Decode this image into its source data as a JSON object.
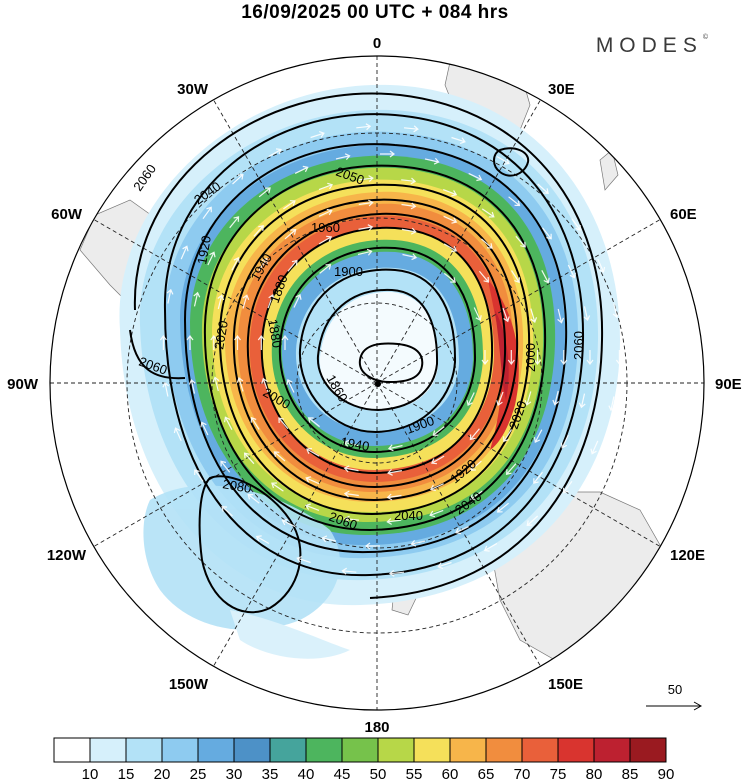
{
  "title": "16/09/2025  00 UTC  + 084 hrs",
  "logo": "MODES",
  "logo_mark": "©",
  "longitude_labels": {
    "top": "0",
    "top_right": "30E",
    "right_upper": "60E",
    "right": "90E",
    "right_lower": "120E",
    "bottom_right": "150E",
    "bottom": "180",
    "bottom_left": "150W",
    "left_lower": "120W",
    "left": "90W",
    "left_upper": "60W",
    "top_left": "30W"
  },
  "contour_labels": [
    "2060",
    "2040",
    "2050",
    "1960",
    "1900",
    "1940",
    "1880",
    "1920",
    "2020",
    "2060",
    "2080",
    "2060",
    "2040",
    "2000",
    "1940",
    "1900",
    "1920",
    "2000",
    "2020",
    "2040",
    "2060",
    "1860",
    "1880"
  ],
  "reference_vector": {
    "label": "50"
  },
  "colorbar": {
    "colors": [
      "#ffffff",
      "#d6f0fb",
      "#b3e2f7",
      "#8ecbf0",
      "#65abe0",
      "#4d91c7",
      "#45a49c",
      "#4db55e",
      "#76c24b",
      "#b7d748",
      "#f5e05a",
      "#f7b54a",
      "#f18d3e",
      "#e9603a",
      "#d9342f",
      "#bd2130",
      "#9a1a20"
    ],
    "ticks": [
      "10",
      "15",
      "20",
      "25",
      "30",
      "35",
      "40",
      "45",
      "50",
      "55",
      "60",
      "65",
      "70",
      "75",
      "80",
      "85",
      "90"
    ]
  }
}
